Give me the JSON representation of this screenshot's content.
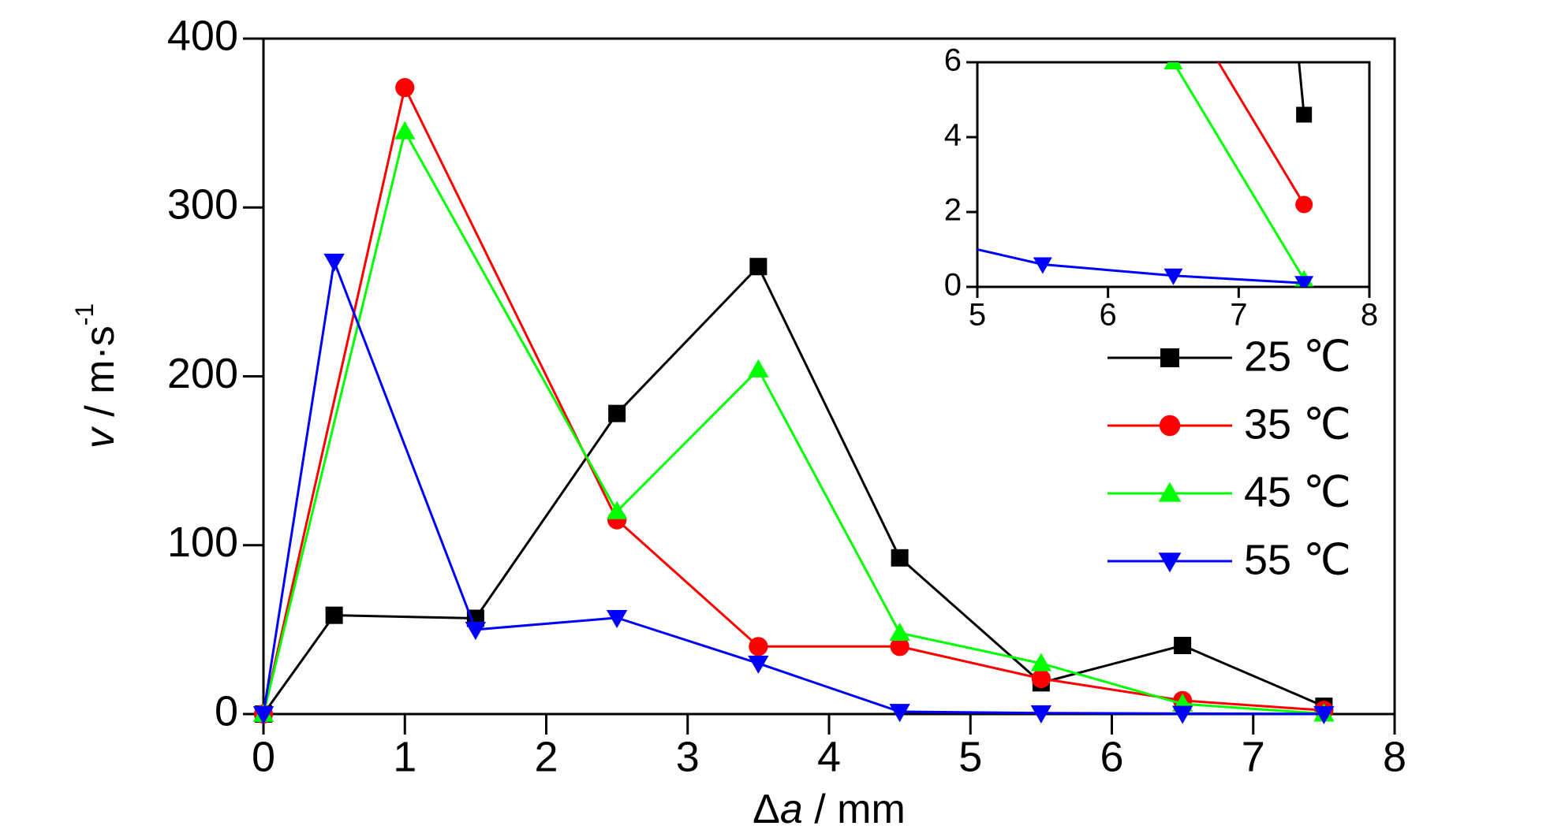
{
  "chart_data": {
    "type": "line",
    "xlabel": {
      "prefix": "Δ",
      "var": "a",
      "unit": " / mm"
    },
    "ylabel": {
      "var": "v",
      "unit": " / m·s",
      "exp": "-1"
    },
    "xlim": [
      0,
      8
    ],
    "xticks": [
      0,
      1,
      2,
      3,
      4,
      5,
      6,
      7,
      8
    ],
    "ylim": [
      0,
      400
    ],
    "yticks": [
      0,
      100,
      200,
      300,
      400
    ],
    "legend": "right",
    "series": [
      {
        "name": "25 ℃",
        "color": "#000000",
        "marker": "square",
        "x": [
          0,
          0.5,
          1.5,
          2.5,
          3.5,
          4.5,
          5.5,
          6.5,
          7.5
        ],
        "values": [
          0,
          58.5,
          56.7,
          178,
          265,
          92.5,
          18.5,
          40.6,
          4.6
        ]
      },
      {
        "name": "35 ℃",
        "color": "#ff0000",
        "marker": "circle",
        "x": [
          0,
          1,
          2.5,
          3.5,
          4.5,
          5.5,
          6.5,
          7.5
        ],
        "values": [
          0,
          371,
          115,
          40,
          40,
          21,
          8,
          2.2
        ]
      },
      {
        "name": "45 ℃",
        "color": "#00ff00",
        "marker": "triangle-up",
        "x": [
          0,
          1,
          2.5,
          3.5,
          4.5,
          5.5,
          6.5,
          7.5
        ],
        "values": [
          0,
          345,
          120,
          204,
          48,
          30,
          6,
          0.2
        ]
      },
      {
        "name": "55 ℃",
        "color": "#0000ff",
        "marker": "triangle-down",
        "x": [
          0,
          0.5,
          1.5,
          2.5,
          3.5,
          4.5,
          5.5,
          6.5,
          7.5
        ],
        "values": [
          0,
          268,
          50,
          57,
          30,
          1.4,
          0.6,
          0.3,
          0.1
        ]
      }
    ],
    "inset": {
      "xlim": [
        5,
        8
      ],
      "xticks": [
        5,
        6,
        7,
        8
      ],
      "ylim": [
        0,
        6
      ],
      "yticks": [
        0,
        2,
        4,
        6
      ]
    }
  }
}
